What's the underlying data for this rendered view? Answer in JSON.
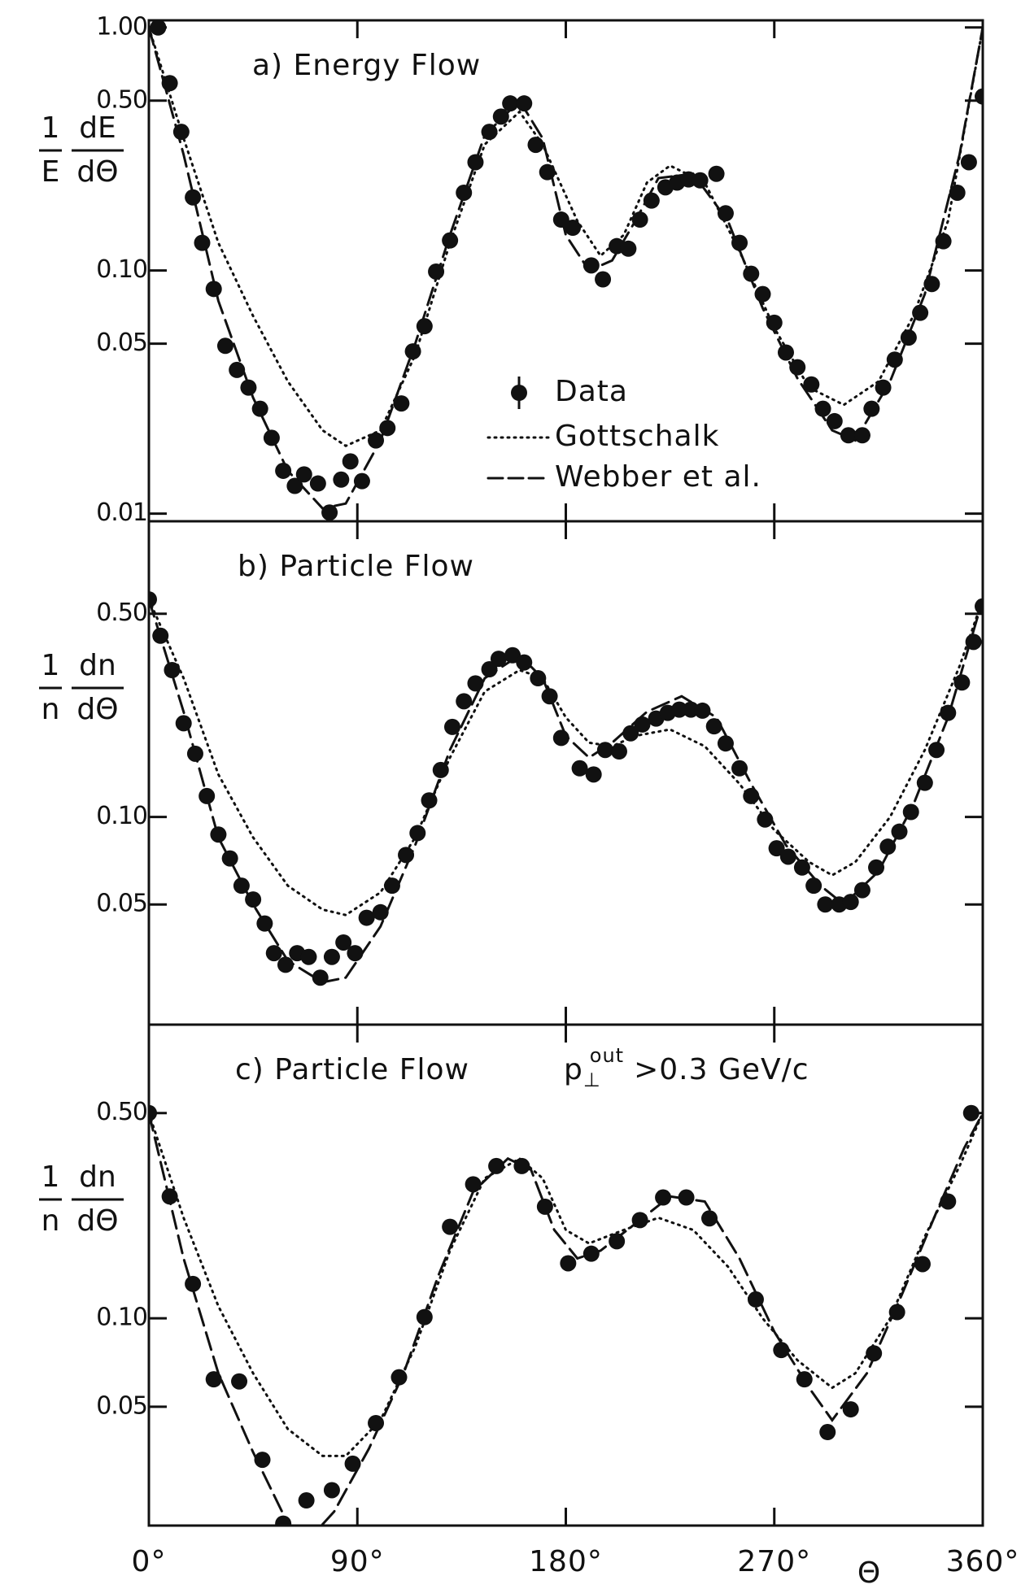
{
  "chart_data": [
    {
      "type": "scatter",
      "title": "a) Energy Flow",
      "log_y": true,
      "ylabel": {
        "num1": "1",
        "den1": "E",
        "num2": "dE",
        "den2": "dΘ"
      },
      "xlim": [
        0,
        360
      ],
      "ylim": [
        0.0093,
        1.07
      ],
      "yticks": [
        {
          "value": 1,
          "label": "1.00"
        },
        {
          "value": 0.5,
          "label": "0.50"
        },
        {
          "value": 0.1,
          "label": "0.10"
        },
        0.05,
        0.01
      ],
      "legend": "center-right",
      "series": [
        {
          "name": "Data",
          "color": "#111111",
          "style": "markers",
          "x": [
            4,
            9,
            14,
            19,
            23,
            28,
            33,
            38,
            43,
            48,
            53,
            58,
            63,
            67,
            73,
            78,
            83,
            87,
            92,
            98,
            103,
            109,
            114,
            119,
            124,
            130,
            136,
            141,
            147,
            152,
            156,
            162,
            167,
            172,
            178,
            183,
            191,
            196,
            202,
            207,
            212,
            217,
            223,
            228,
            233,
            238,
            245,
            249,
            255,
            260,
            265,
            270,
            275,
            280,
            286,
            291,
            296,
            302,
            308,
            312,
            317,
            322,
            328,
            333,
            338,
            343,
            349,
            354,
            360
          ],
          "values": [
            1.0,
            0.59,
            0.372,
            0.2,
            0.13,
            0.084,
            0.049,
            0.039,
            0.033,
            0.027,
            0.0205,
            0.015,
            0.013,
            0.0145,
            0.0133,
            0.0101,
            0.0138,
            0.0164,
            0.0136,
            0.02,
            0.0225,
            0.0284,
            0.0465,
            0.059,
            0.099,
            0.133,
            0.209,
            0.279,
            0.372,
            0.43,
            0.487,
            0.487,
            0.329,
            0.254,
            0.162,
            0.15,
            0.105,
            0.092,
            0.126,
            0.123,
            0.162,
            0.194,
            0.22,
            0.23,
            0.237,
            0.235,
            0.25,
            0.172,
            0.13,
            0.097,
            0.08,
            0.061,
            0.046,
            0.04,
            0.034,
            0.027,
            0.024,
            0.021,
            0.021,
            0.027,
            0.033,
            0.043,
            0.053,
            0.067,
            0.088,
            0.132,
            0.209,
            0.279,
            0.52
          ]
        },
        {
          "name": "Gottschalk",
          "color": "#111111",
          "style": "dotted",
          "x": [
            0,
            15,
            30,
            45,
            60,
            75,
            85,
            100,
            115,
            130,
            145,
            160,
            170,
            185,
            195,
            205,
            215,
            225,
            240,
            255,
            270,
            285,
            300,
            315,
            330,
            345,
            360
          ],
          "values": [
            1.0,
            0.35,
            0.13,
            0.065,
            0.035,
            0.022,
            0.019,
            0.022,
            0.045,
            0.13,
            0.33,
            0.45,
            0.33,
            0.16,
            0.115,
            0.14,
            0.23,
            0.27,
            0.23,
            0.12,
            0.058,
            0.033,
            0.028,
            0.035,
            0.065,
            0.16,
            1.0
          ]
        },
        {
          "name": "Webber et al.",
          "color": "#111111",
          "style": "dashed",
          "x": [
            0,
            15,
            30,
            45,
            60,
            75,
            85,
            100,
            115,
            130,
            145,
            160,
            170,
            180,
            190,
            200,
            210,
            220,
            235,
            250,
            265,
            280,
            295,
            305,
            320,
            335,
            350,
            360
          ],
          "values": [
            1.0,
            0.3,
            0.075,
            0.03,
            0.015,
            0.0105,
            0.011,
            0.02,
            0.05,
            0.14,
            0.36,
            0.5,
            0.35,
            0.14,
            0.1,
            0.11,
            0.16,
            0.24,
            0.25,
            0.16,
            0.07,
            0.036,
            0.022,
            0.02,
            0.035,
            0.08,
            0.3,
            1.0
          ]
        }
      ]
    },
    {
      "type": "scatter",
      "title": "b) Particle Flow",
      "log_y": true,
      "ylabel": {
        "num1": "1",
        "den1": "n",
        "num2": "dn",
        "den2": "dΘ"
      },
      "xlim": [
        0,
        360
      ],
      "ylim": [
        0.0193,
        1.04
      ],
      "yticks": [
        {
          "value": 0.5,
          "label": "0.50"
        },
        {
          "value": 0.1,
          "label": "0.10"
        },
        0.05
      ],
      "series": [
        {
          "color": "#111111",
          "style": "markers",
          "x": [
            0,
            5,
            10,
            15,
            20,
            25,
            30,
            35,
            40,
            45,
            50,
            54,
            59,
            64,
            69,
            74,
            79,
            84,
            89,
            94,
            100,
            105,
            111,
            116,
            121,
            126,
            131,
            136,
            141,
            147,
            151,
            157,
            162,
            168,
            173,
            178,
            186,
            192,
            197,
            203,
            208,
            213,
            219,
            224,
            229,
            234,
            239,
            244,
            249,
            255,
            260,
            266,
            271,
            276,
            282,
            287,
            292,
            298,
            303,
            308,
            314,
            319,
            324,
            329,
            335,
            340,
            345,
            351,
            356,
            360
          ],
          "values": [
            0.56,
            0.42,
            0.32,
            0.21,
            0.165,
            0.118,
            0.087,
            0.072,
            0.058,
            0.052,
            0.043,
            0.034,
            0.031,
            0.034,
            0.033,
            0.028,
            0.033,
            0.037,
            0.034,
            0.045,
            0.047,
            0.058,
            0.074,
            0.088,
            0.114,
            0.145,
            0.204,
            0.25,
            0.288,
            0.322,
            0.35,
            0.36,
            0.34,
            0.3,
            0.26,
            0.187,
            0.147,
            0.14,
            0.17,
            0.168,
            0.194,
            0.208,
            0.218,
            0.228,
            0.234,
            0.234,
            0.232,
            0.205,
            0.179,
            0.147,
            0.118,
            0.098,
            0.078,
            0.073,
            0.067,
            0.058,
            0.05,
            0.05,
            0.051,
            0.056,
            0.067,
            0.079,
            0.089,
            0.104,
            0.131,
            0.17,
            0.228,
            0.29,
            0.4,
            0.53
          ]
        },
        {
          "color": "#111111",
          "style": "dotted",
          "x": [
            0,
            15,
            30,
            45,
            60,
            75,
            85,
            100,
            115,
            130,
            145,
            160,
            170,
            180,
            190,
            200,
            210,
            225,
            240,
            255,
            270,
            285,
            295,
            305,
            320,
            335,
            350,
            360
          ],
          "values": [
            0.56,
            0.3,
            0.14,
            0.085,
            0.058,
            0.048,
            0.046,
            0.055,
            0.085,
            0.16,
            0.27,
            0.32,
            0.3,
            0.22,
            0.18,
            0.175,
            0.19,
            0.2,
            0.175,
            0.13,
            0.09,
            0.07,
            0.063,
            0.07,
            0.1,
            0.17,
            0.33,
            0.56
          ]
        },
        {
          "color": "#111111",
          "style": "dashed",
          "x": [
            0,
            15,
            30,
            45,
            60,
            75,
            85,
            100,
            115,
            130,
            145,
            160,
            170,
            180,
            190,
            200,
            215,
            230,
            245,
            260,
            275,
            290,
            300,
            315,
            330,
            345,
            360
          ],
          "values": [
            0.56,
            0.23,
            0.085,
            0.05,
            0.032,
            0.027,
            0.028,
            0.042,
            0.08,
            0.17,
            0.3,
            0.36,
            0.3,
            0.19,
            0.16,
            0.18,
            0.23,
            0.26,
            0.22,
            0.13,
            0.08,
            0.058,
            0.05,
            0.065,
            0.11,
            0.22,
            0.56
          ]
        }
      ]
    },
    {
      "type": "scatter",
      "title": "c) Particle Flow",
      "log_y": true,
      "subtitle": {
        "base": "p",
        "sub": "⊥",
        "sup": "out",
        "rest": ">0.3 GeV/c"
      },
      "ylabel": {
        "num1": "1",
        "den1": "n",
        "num2": "dn",
        "den2": "dΘ"
      },
      "xlabel": "Θ",
      "xlim": [
        0,
        360
      ],
      "ylim": [
        0.0197,
        1.0
      ],
      "xticks": [
        {
          "value": 0,
          "label": "0°"
        },
        {
          "value": 90,
          "label": "90°"
        },
        {
          "value": 180,
          "label": "180°"
        },
        {
          "value": 270,
          "label": "270°"
        },
        {
          "value": 360,
          "label": "360°"
        }
      ],
      "yticks": [
        {
          "value": 0.5,
          "label": "0.50"
        },
        {
          "value": 0.1,
          "label": "0.10"
        },
        0.05
      ],
      "series": [
        {
          "color": "#111111",
          "style": "markers",
          "x": [
            0,
            9,
            19,
            28,
            39,
            49,
            58,
            68,
            79,
            88,
            98,
            108,
            119,
            130,
            140,
            150,
            161,
            171,
            181,
            191,
            202,
            212,
            222,
            232,
            242,
            262,
            273,
            283,
            293,
            303,
            313,
            323,
            334,
            345,
            355
          ],
          "values": [
            0.5,
            0.26,
            0.131,
            0.062,
            0.061,
            0.033,
            0.02,
            0.024,
            0.026,
            0.032,
            0.044,
            0.063,
            0.101,
            0.205,
            0.286,
            0.33,
            0.33,
            0.24,
            0.154,
            0.166,
            0.183,
            0.216,
            0.258,
            0.258,
            0.219,
            0.116,
            0.078,
            0.062,
            0.041,
            0.049,
            0.076,
            0.105,
            0.153,
            0.25,
            0.5
          ]
        },
        {
          "color": "#111111",
          "style": "dotted",
          "x": [
            0,
            15,
            30,
            45,
            60,
            75,
            85,
            100,
            115,
            130,
            145,
            160,
            170,
            180,
            190,
            205,
            220,
            235,
            250,
            265,
            280,
            295,
            305,
            320,
            335,
            350,
            360
          ],
          "values": [
            0.5,
            0.22,
            0.11,
            0.065,
            0.042,
            0.034,
            0.034,
            0.045,
            0.08,
            0.17,
            0.3,
            0.35,
            0.3,
            0.2,
            0.18,
            0.2,
            0.22,
            0.2,
            0.15,
            0.1,
            0.072,
            0.058,
            0.065,
            0.1,
            0.19,
            0.33,
            0.5
          ]
        },
        {
          "color": "#111111",
          "style": "dashed",
          "x": [
            0,
            15,
            30,
            45,
            60,
            70,
            80,
            95,
            110,
            125,
            140,
            155,
            165,
            175,
            185,
            195,
            210,
            225,
            240,
            255,
            270,
            285,
            295,
            310,
            325,
            340,
            352,
            360
          ],
          "values": [
            0.5,
            0.16,
            0.065,
            0.035,
            0.02,
            0.018,
            0.022,
            0.036,
            0.065,
            0.14,
            0.27,
            0.35,
            0.32,
            0.2,
            0.16,
            0.17,
            0.21,
            0.26,
            0.25,
            0.16,
            0.09,
            0.058,
            0.045,
            0.065,
            0.12,
            0.23,
            0.38,
            0.5
          ]
        }
      ]
    }
  ]
}
